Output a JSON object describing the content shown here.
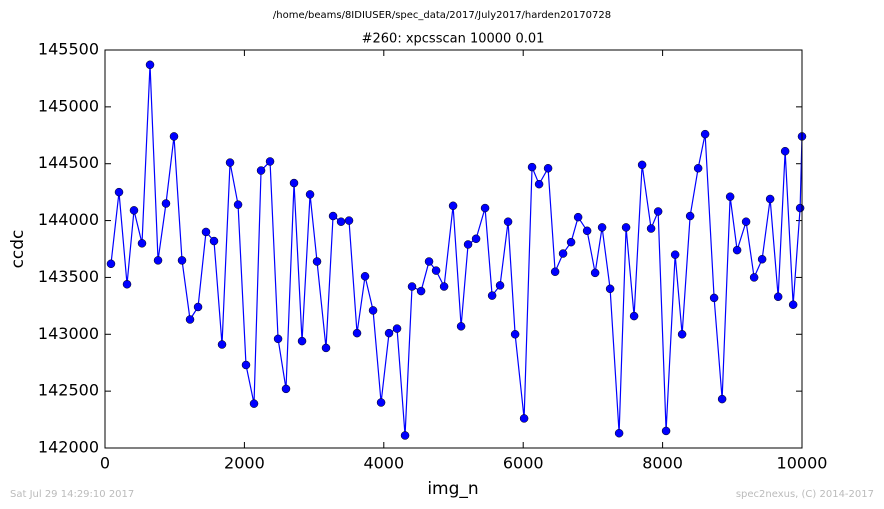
{
  "chart_data": {
    "type": "line",
    "suptitle": "/home/beams/8IDIUSER/spec_data/2017/July2017/harden20170728",
    "title": "#260: xpcsscan 10000 0.01",
    "xlabel": "img_n",
    "ylabel": "ccdc",
    "footnote_left": "Sat Jul 29 14:29:10 2017",
    "footnote_right": "spec2nexus, (C) 2014-2017",
    "x": [
      86,
      201,
      316,
      416,
      531,
      646,
      761,
      875,
      990,
      1105,
      1220,
      1335,
      1449,
      1564,
      1679,
      1794,
      1909,
      2023,
      2138,
      2239,
      2368,
      2483,
      2597,
      2712,
      2827,
      2942,
      3042,
      3171,
      3272,
      3387,
      3501,
      3616,
      3731,
      3846,
      3961,
      4075,
      4190,
      4305,
      4405,
      4535,
      4649,
      4750,
      4865,
      4994,
      5109,
      5209,
      5324,
      5453,
      5554,
      5668,
      5783,
      5884,
      6013,
      6127,
      6228,
      6357,
      6458,
      6572,
      6687,
      6788,
      6917,
      7032,
      7132,
      7247,
      7376,
      7476,
      7591,
      7706,
      7835,
      7936,
      8050,
      8180,
      8280,
      8395,
      8510,
      8610,
      8739,
      8854,
      8969,
      9069,
      9198,
      9313,
      9428,
      9543,
      9658,
      9758,
      9873,
      9973,
      10000
    ],
    "series": [
      {
        "name": "ccdc",
        "color": "#0000ff",
        "values": [
          143620,
          144250,
          143440,
          144090,
          143800,
          145370,
          143650,
          144150,
          144740,
          143650,
          143130,
          143240,
          143900,
          143820,
          142910,
          144510,
          144140,
          142730,
          142390,
          144440,
          144520,
          142960,
          142520,
          144330,
          142940,
          144230,
          143640,
          142880,
          144040,
          143990,
          144000,
          143010,
          143510,
          143210,
          142400,
          143010,
          143050,
          142110,
          143420,
          143380,
          143640,
          143560,
          143420,
          144130,
          143070,
          143790,
          143840,
          144110,
          143340,
          143430,
          143990,
          143000,
          142260,
          144470,
          144320,
          144460,
          143550,
          143710,
          143810,
          144030,
          143910,
          143540,
          143940,
          143400,
          142130,
          143940,
          143160,
          144490,
          143930,
          144080,
          142150,
          143700,
          143000,
          144040,
          144460,
          144760,
          143320,
          142430,
          144210,
          143740,
          143990,
          143500,
          143660,
          144190,
          143330,
          144610,
          143260,
          144110,
          144740
        ]
      }
    ],
    "xlim": [
      0,
      10000
    ],
    "ylim": [
      142000,
      145500
    ],
    "xticks": [
      0,
      2000,
      4000,
      6000,
      8000,
      10000
    ],
    "yticks": [
      142000,
      142500,
      143000,
      143500,
      144000,
      144500,
      145000,
      145500
    ],
    "grid": false
  }
}
